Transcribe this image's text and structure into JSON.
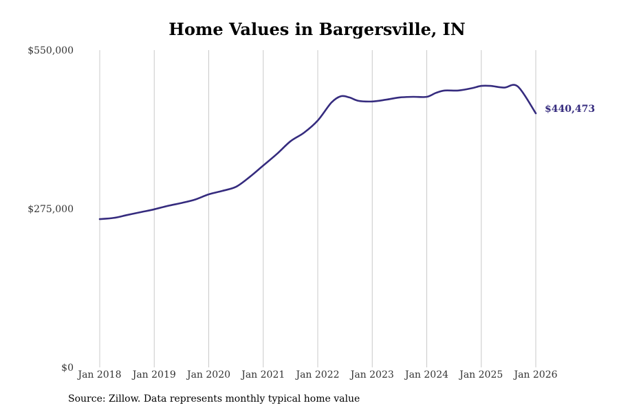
{
  "chart_data": {
    "type": "line",
    "title": "Home Values in Bargersville, IN",
    "xlabel": "",
    "ylabel": "",
    "x_ticks": [
      "Jan 2018",
      "Jan 2019",
      "Jan 2020",
      "Jan 2021",
      "Jan 2022",
      "Jan 2023",
      "Jan 2024",
      "Jan 2025",
      "Jan 2026"
    ],
    "y_ticks": [
      "$0",
      "$275,000",
      "$550,000"
    ],
    "y_tick_values": [
      0,
      275000,
      550000
    ],
    "ylim": [
      0,
      550000
    ],
    "xlim": [
      2018.0,
      2026.0
    ],
    "grid": "vertical",
    "line_color": "#352b7e",
    "end_label": "$440,473",
    "series": [
      {
        "name": "Typical home value",
        "x": [
          2018.0,
          2018.25,
          2018.5,
          2018.75,
          2019.0,
          2019.25,
          2019.5,
          2019.75,
          2020.0,
          2020.25,
          2020.5,
          2020.75,
          2021.0,
          2021.25,
          2021.5,
          2021.75,
          2022.0,
          2022.25,
          2022.42,
          2022.58,
          2022.75,
          2023.0,
          2023.25,
          2023.5,
          2023.75,
          2024.0,
          2024.17,
          2024.33,
          2024.58,
          2024.83,
          2025.0,
          2025.17,
          2025.42,
          2025.67,
          2026.0
        ],
        "y": [
          257000,
          259000,
          264000,
          269000,
          274000,
          280000,
          285000,
          291000,
          300000,
          306000,
          313000,
          330000,
          350000,
          370000,
          392000,
          407000,
          428000,
          459000,
          470000,
          468000,
          462000,
          461000,
          464000,
          468000,
          469000,
          469000,
          476000,
          480000,
          480000,
          484000,
          488000,
          488000,
          485000,
          487000,
          440473
        ]
      }
    ]
  },
  "footer": {
    "source": "Source: Zillow. Data represents monthly typical home value"
  }
}
